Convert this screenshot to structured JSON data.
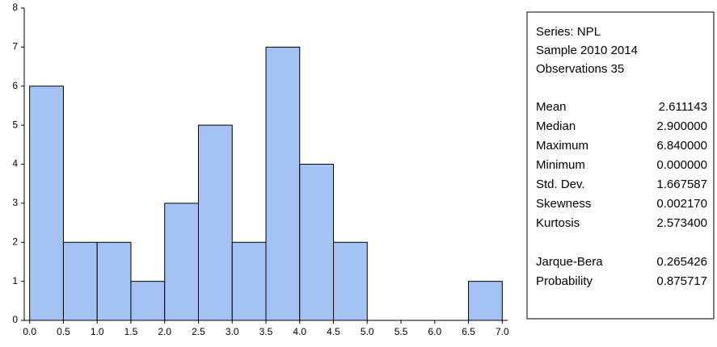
{
  "chart_data": {
    "type": "histogram",
    "bins": [
      0,
      0.5,
      1,
      1.5,
      2,
      2.5,
      3,
      3.5,
      4,
      4.5,
      5,
      5.5,
      6,
      6.5,
      7
    ],
    "values": [
      6,
      2,
      2,
      1,
      3,
      5,
      2,
      7,
      4,
      2,
      0,
      0,
      0,
      1
    ],
    "color": "#a4c2f4",
    "xlim": [
      -0.08,
      7.08
    ],
    "xticks": [
      {
        "value": 0,
        "label": "0.0"
      },
      0.5,
      {
        "value": 1,
        "label": "1.0"
      },
      1.5,
      {
        "value": 2,
        "label": "2.0"
      },
      2.5,
      {
        "value": 3,
        "label": "3.0"
      },
      3.5,
      {
        "value": 4,
        "label": "4.0"
      },
      4.5,
      {
        "value": 5,
        "label": "5.0"
      },
      5.5,
      {
        "value": 6,
        "label": "6.0"
      },
      6.5,
      {
        "value": 7,
        "label": "7.0"
      }
    ],
    "ylim": [
      0,
      8
    ],
    "yticks": [
      0,
      1,
      2,
      3,
      4,
      5,
      6,
      7,
      8
    ]
  },
  "stats_box": {
    "header": [
      "Series: NPL",
      "Sample 2010 2014",
      "Observations 35"
    ],
    "groups": [
      [
        [
          "Mean",
          "2.611143"
        ],
        [
          "Median",
          "2.900000"
        ],
        [
          "Maximum",
          "6.840000"
        ],
        [
          "Minimum",
          "0.000000"
        ],
        [
          "Std. Dev.",
          "1.667587"
        ],
        [
          "Skewness",
          "0.002170"
        ],
        [
          "Kurtosis",
          "2.573400"
        ]
      ],
      [
        [
          "Jarque-Bera",
          "0.265426"
        ],
        [
          "Probability",
          "0.875717"
        ]
      ]
    ]
  }
}
